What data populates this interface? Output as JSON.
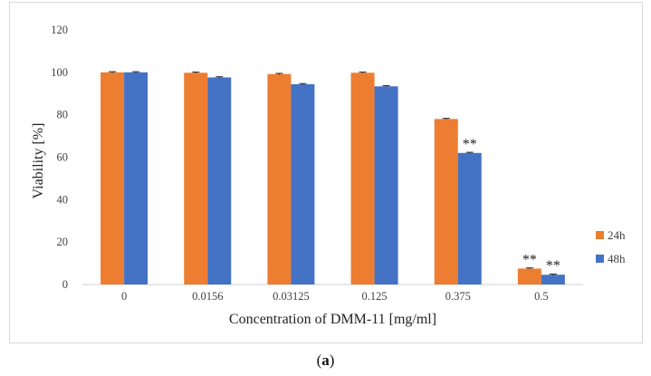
{
  "chart_data": {
    "type": "bar",
    "xlabel": "Concentration of DMM-11 [mg/ml]",
    "ylabel": "Viability [%]",
    "ylim": [
      0,
      120
    ],
    "yticks": [
      0,
      20,
      40,
      60,
      80,
      100,
      120
    ],
    "grid": false,
    "legend_position": "right",
    "categories": [
      "0",
      "0.0156",
      "0.03125",
      "0.125",
      "0.375",
      "0.5"
    ],
    "series": [
      {
        "name": "24h",
        "color": "#ED7D31",
        "values": [
          100,
          99.8,
          99.2,
          99.8,
          78,
          7.5
        ],
        "error": [
          0.3,
          0.3,
          0.3,
          0.3,
          0.3,
          0.3
        ],
        "annotations": [
          "",
          "",
          "",
          "",
          "",
          "**"
        ]
      },
      {
        "name": "48h",
        "color": "#4472C4",
        "values": [
          100,
          97.6,
          94.4,
          93.4,
          62,
          4.6
        ],
        "error": [
          0.3,
          0.3,
          0.3,
          0.3,
          0.3,
          0.3
        ],
        "annotations": [
          "",
          "",
          "",
          "",
          "**",
          "**"
        ]
      }
    ]
  },
  "caption": {
    "open": "(",
    "letter": "a",
    "close": ")"
  }
}
